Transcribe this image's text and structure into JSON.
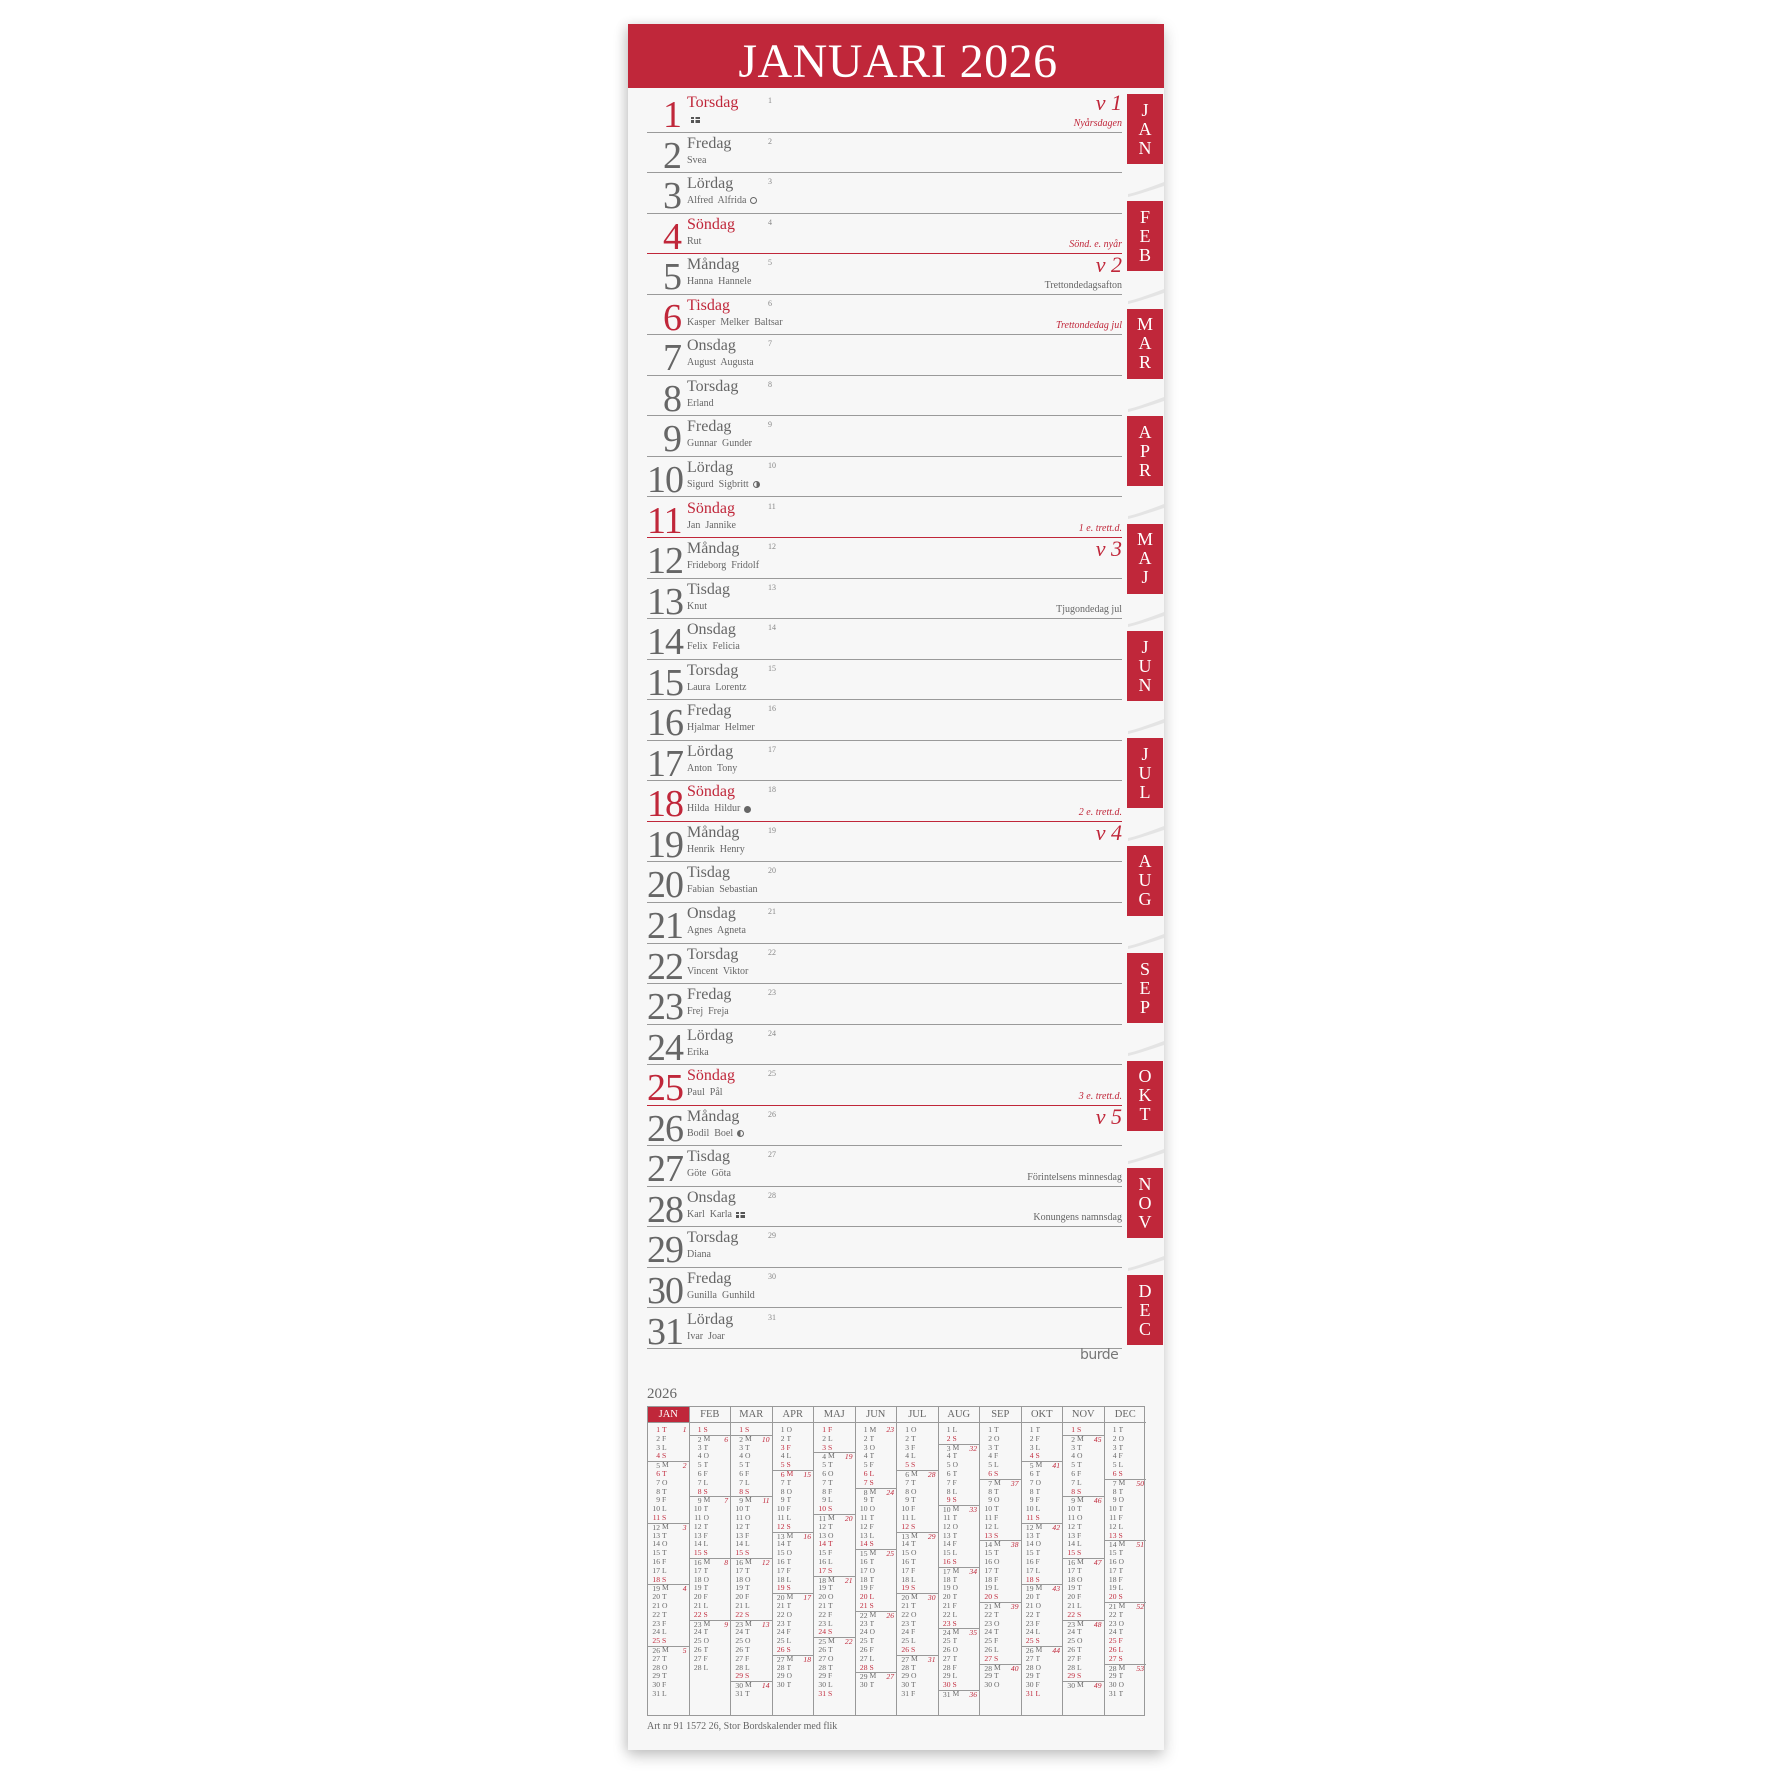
{
  "header": {
    "title": "JANUARI 2026"
  },
  "colors": {
    "accent": "#c0273a",
    "text": "#666666",
    "paper": "#f7f7f7"
  },
  "days": [
    {
      "day": "1",
      "weekday": "Torsdag",
      "names": "",
      "doy": "1",
      "red": true,
      "week": "v 1",
      "note": "Nyårsdagen",
      "note_red": true,
      "icon": "swedish-flag"
    },
    {
      "day": "2",
      "weekday": "Fredag",
      "names": "Svea",
      "doy": "2",
      "red": false
    },
    {
      "day": "3",
      "weekday": "Lördag",
      "names": "Alfred  Alfrida",
      "doy": "3",
      "red": false,
      "icon": "full-moon"
    },
    {
      "day": "4",
      "weekday": "Söndag",
      "names": "Rut",
      "doy": "4",
      "red": true,
      "sunday": true,
      "note": "Sönd. e. nyår",
      "note_red": true
    },
    {
      "day": "5",
      "weekday": "Måndag",
      "names": "Hanna  Hannele",
      "doy": "5",
      "red": false,
      "week": "v 2",
      "note": "Trettondedagsafton",
      "note_red": false
    },
    {
      "day": "6",
      "weekday": "Tisdag",
      "names": "Kasper  Melker  Baltsar",
      "doy": "6",
      "red": true,
      "note": "Trettondedag jul",
      "note_red": true
    },
    {
      "day": "7",
      "weekday": "Onsdag",
      "names": "August  Augusta",
      "doy": "7",
      "red": false
    },
    {
      "day": "8",
      "weekday": "Torsdag",
      "names": "Erland",
      "doy": "8",
      "red": false
    },
    {
      "day": "9",
      "weekday": "Fredag",
      "names": "Gunnar  Gunder",
      "doy": "9",
      "red": false
    },
    {
      "day": "10",
      "weekday": "Lördag",
      "names": "Sigurd  Sigbritt",
      "doy": "10",
      "red": false,
      "icon": "last-quarter-moon"
    },
    {
      "day": "11",
      "weekday": "Söndag",
      "names": "Jan  Jannike",
      "doy": "11",
      "red": true,
      "sunday": true,
      "note": "1 e. trett.d.",
      "note_red": true
    },
    {
      "day": "12",
      "weekday": "Måndag",
      "names": "Frideborg  Fridolf",
      "doy": "12",
      "red": false,
      "week": "v 3"
    },
    {
      "day": "13",
      "weekday": "Tisdag",
      "names": "Knut",
      "doy": "13",
      "red": false,
      "note": "Tjugondedag jul",
      "note_red": false
    },
    {
      "day": "14",
      "weekday": "Onsdag",
      "names": "Felix  Felicia",
      "doy": "14",
      "red": false
    },
    {
      "day": "15",
      "weekday": "Torsdag",
      "names": "Laura  Lorentz",
      "doy": "15",
      "red": false
    },
    {
      "day": "16",
      "weekday": "Fredag",
      "names": "Hjalmar  Helmer",
      "doy": "16",
      "red": false
    },
    {
      "day": "17",
      "weekday": "Lördag",
      "names": "Anton  Tony",
      "doy": "17",
      "red": false
    },
    {
      "day": "18",
      "weekday": "Söndag",
      "names": "Hilda  Hildur",
      "doy": "18",
      "red": true,
      "sunday": true,
      "note": "2 e. trett.d.",
      "note_red": true,
      "icon": "new-moon"
    },
    {
      "day": "19",
      "weekday": "Måndag",
      "names": "Henrik  Henry",
      "doy": "19",
      "red": false,
      "week": "v 4"
    },
    {
      "day": "20",
      "weekday": "Tisdag",
      "names": "Fabian  Sebastian",
      "doy": "20",
      "red": false
    },
    {
      "day": "21",
      "weekday": "Onsdag",
      "names": "Agnes  Agneta",
      "doy": "21",
      "red": false
    },
    {
      "day": "22",
      "weekday": "Torsdag",
      "names": "Vincent  Viktor",
      "doy": "22",
      "red": false
    },
    {
      "day": "23",
      "weekday": "Fredag",
      "names": "Frej  Freja",
      "doy": "23",
      "red": false
    },
    {
      "day": "24",
      "weekday": "Lördag",
      "names": "Erika",
      "doy": "24",
      "red": false
    },
    {
      "day": "25",
      "weekday": "Söndag",
      "names": "Paul  Pål",
      "doy": "25",
      "red": true,
      "sunday": true,
      "note": "3 e. trett.d.",
      "note_red": true
    },
    {
      "day": "26",
      "weekday": "Måndag",
      "names": "Bodil  Boel",
      "doy": "26",
      "red": false,
      "week": "v 5",
      "icon": "first-quarter-moon"
    },
    {
      "day": "27",
      "weekday": "Tisdag",
      "names": "Göte  Göta",
      "doy": "27",
      "red": false,
      "note": "Förintelsens minnesdag",
      "note_red": false
    },
    {
      "day": "28",
      "weekday": "Onsdag",
      "names": "Karl  Karla",
      "doy": "28",
      "red": false,
      "note": "Konungens namnsdag",
      "note_red": false,
      "icon": "swedish-flag"
    },
    {
      "day": "29",
      "weekday": "Torsdag",
      "names": "Diana",
      "doy": "29",
      "red": false
    },
    {
      "day": "30",
      "weekday": "Fredag",
      "names": "Gunilla  Gunhild",
      "doy": "30",
      "red": false
    },
    {
      "day": "31",
      "weekday": "Lördag",
      "names": "Ivar  Joar",
      "doy": "31",
      "red": false
    }
  ],
  "tabs": [
    "JAN",
    "FEB",
    "MAR",
    "APR",
    "MAJ",
    "JUN",
    "JUL",
    "AUG",
    "SEP",
    "OKT",
    "NOV",
    "DEC"
  ],
  "active_tab": "JAN",
  "brand": "burde",
  "year_overview": {
    "year": "2026",
    "months": [
      {
        "name": "JAN",
        "letters": "TFLSMTOTFLSMTOTFLSMTOTFLSMTOTFL",
        "red_days": [
          1,
          6
        ],
        "weeks": [
          [
            1,
            1
          ],
          [
            5,
            2
          ],
          [
            12,
            3
          ],
          [
            19,
            4
          ],
          [
            26,
            5
          ]
        ]
      },
      {
        "name": "FEB",
        "letters": "SMTOTFLSMTOTFLSMTOTFLSMTOTFL",
        "red_days": [],
        "weeks": [
          [
            2,
            6
          ],
          [
            9,
            7
          ],
          [
            16,
            8
          ],
          [
            23,
            9
          ]
        ]
      },
      {
        "name": "MAR",
        "letters": "SMTOTFLSMTOTFLSMTOTFLSMTOTFLSMT",
        "red_days": [],
        "weeks": [
          [
            2,
            10
          ],
          [
            9,
            11
          ],
          [
            16,
            12
          ],
          [
            23,
            13
          ],
          [
            30,
            14
          ]
        ]
      },
      {
        "name": "APR",
        "letters": "OTFLSMTOTFLSMTOTFLSMTOTFLSMTOT",
        "red_days": [
          3,
          6
        ],
        "weeks": [
          [
            6,
            15
          ],
          [
            13,
            16
          ],
          [
            20,
            17
          ],
          [
            27,
            18
          ]
        ]
      },
      {
        "name": "MAJ",
        "letters": "FLSMTOTFLSMTOTFLSMTOTFLSMTOTFLS",
        "red_days": [
          1,
          14
        ],
        "weeks": [
          [
            4,
            19
          ],
          [
            11,
            20
          ],
          [
            18,
            21
          ],
          [
            25,
            22
          ]
        ]
      },
      {
        "name": "JUN",
        "letters": "MTOTFLSMTOTFLSMTOTFLSMTOTFLSMT",
        "red_days": [
          6,
          20
        ],
        "weeks": [
          [
            1,
            23
          ],
          [
            8,
            24
          ],
          [
            15,
            25
          ],
          [
            22,
            26
          ],
          [
            29,
            27
          ]
        ]
      },
      {
        "name": "JUL",
        "letters": "OTFLSMTOTFLSMTOTFLSMTOTFLSMTOTF",
        "red_days": [],
        "weeks": [
          [
            6,
            28
          ],
          [
            13,
            29
          ],
          [
            20,
            30
          ],
          [
            27,
            31
          ]
        ]
      },
      {
        "name": "AUG",
        "letters": "LSMTOTFLSMTOTFLSMTOTFLSMTOTFLSM",
        "red_days": [],
        "weeks": [
          [
            3,
            32
          ],
          [
            10,
            33
          ],
          [
            17,
            34
          ],
          [
            24,
            35
          ],
          [
            31,
            36
          ]
        ]
      },
      {
        "name": "SEP",
        "letters": "TOTFLSMTOTFLSMTOTFLSMTOTFLSMTO",
        "red_days": [],
        "weeks": [
          [
            7,
            37
          ],
          [
            14,
            38
          ],
          [
            21,
            39
          ],
          [
            28,
            40
          ]
        ]
      },
      {
        "name": "OKT",
        "letters": "TFLSMTOTFLSMTOTFLSMTOTFLSMTOTFL",
        "red_days": [
          31
        ],
        "weeks": [
          [
            5,
            41
          ],
          [
            12,
            42
          ],
          [
            19,
            43
          ],
          [
            26,
            44
          ]
        ]
      },
      {
        "name": "NOV",
        "letters": "SMTOTFLSMTOTFLSMTOTFLSMTOTFLSM",
        "red_days": [],
        "weeks": [
          [
            2,
            45
          ],
          [
            9,
            46
          ],
          [
            16,
            47
          ],
          [
            23,
            48
          ],
          [
            30,
            49
          ]
        ]
      },
      {
        "name": "DEC",
        "letters": "TOTFLSMTOTFLSMTOTFLSMTOTFLSMTOT",
        "red_days": [
          25,
          26
        ],
        "weeks": [
          [
            7,
            50
          ],
          [
            14,
            51
          ],
          [
            21,
            52
          ],
          [
            28,
            53
          ]
        ]
      }
    ]
  },
  "footer": "Art nr 91 1572 26, Stor Bordskalender med flik"
}
